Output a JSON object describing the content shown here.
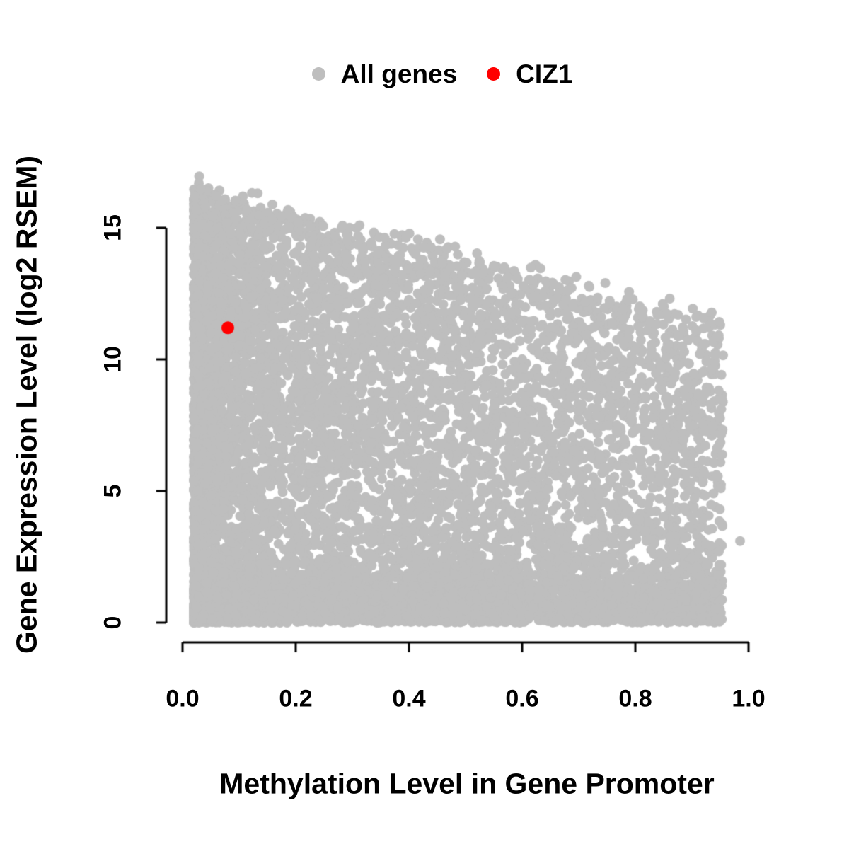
{
  "page": {
    "background": "#ffffff"
  },
  "legend": {
    "position": "top-center",
    "items": [
      {
        "label": "All genes",
        "color": "#bebebe",
        "marker": "circle"
      },
      {
        "label": "CIZ1",
        "color": "#ff0000",
        "marker": "circle"
      }
    ]
  },
  "axes": {
    "xlabel": "Methylation Level in Gene Promoter",
    "ylabel": "Gene Expression Level (log2 RSEM)",
    "x_tick_labels": [
      "0.0",
      "0.2",
      "0.4",
      "0.6",
      "0.8",
      "1.0"
    ],
    "y_tick_labels": [
      "0",
      "5",
      "10",
      "15"
    ]
  },
  "chart_data": {
    "type": "scatter",
    "title": "",
    "xlabel": "Methylation Level in Gene Promoter",
    "ylabel": "Gene Expression Level (log2 RSEM)",
    "xlim": [
      0,
      1
    ],
    "ylim": [
      0,
      15
    ],
    "x_ticks": [
      0,
      0.2,
      0.4,
      0.6,
      0.8,
      1.0
    ],
    "y_ticks": [
      0,
      5,
      10,
      15
    ],
    "grid": false,
    "legend_position": "top-center",
    "axis_color": "#000000",
    "series": [
      {
        "name": "All genes",
        "color": "#bebebe",
        "marker": "filled-circle",
        "marker_radius_px": 7,
        "description": "Dense cloud of thousands of genes; expression spans 0 to ~16.5 at low methylation, upper envelope declines to ~11.5 near methylation 0.95; dense band of points at expression 0 across all methylation levels",
        "cloud_model": {
          "seed": 42,
          "n_points": 9500,
          "x_min": 0.02,
          "x_max": 0.955,
          "x_power": 1.7,
          "envelope_intercept": 16.6,
          "envelope_slope": -5.3,
          "envelope_noise_sd": 0.25,
          "bottom_fraction": 0.28,
          "bottom_sigma": 1.0
        },
        "outlier_points": [
          [
            0.985,
            3.1
          ]
        ]
      },
      {
        "name": "CIZ1",
        "color": "#ff0000",
        "marker": "filled-circle",
        "marker_radius_px": 9,
        "points": [
          [
            0.08,
            11.2
          ]
        ]
      }
    ]
  }
}
